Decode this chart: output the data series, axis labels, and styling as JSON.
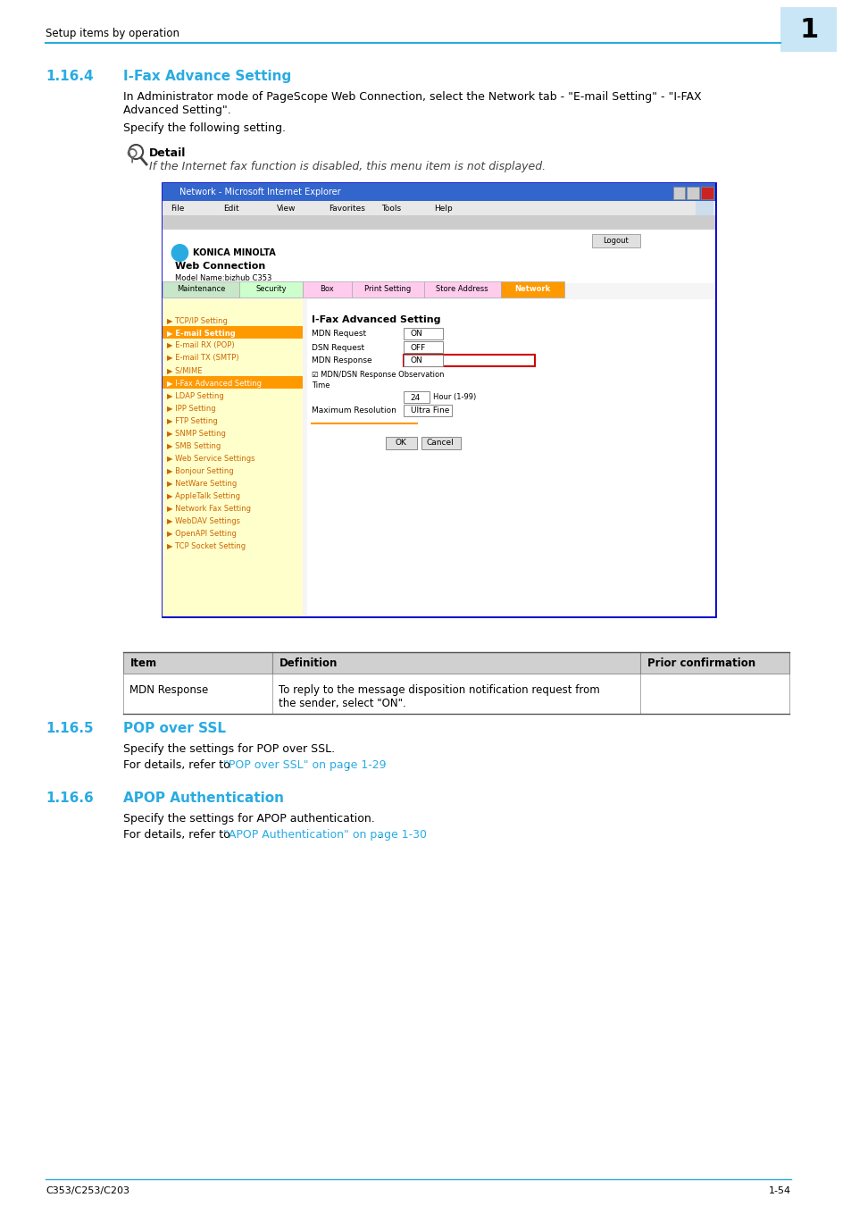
{
  "page_bg": "#ffffff",
  "header_text": "Setup items by operation",
  "header_text_color": "#000000",
  "header_line_color": "#29abe2",
  "chapter_number": "1",
  "chapter_bg": "#c8e6f5",
  "chapter_number_color": "#000000",
  "section_164_number": "1.16.4",
  "section_164_title": "I-Fax Advance Setting",
  "section_164_color": "#29abe2",
  "para1": "In Administrator mode of PageScope Web Connection, select the Network tab - \"E-mail Setting\" - \"I-FAX\nAdvanced Setting\".",
  "para2": "Specify the following setting.",
  "detail_label": "Detail",
  "detail_italic": "If the Internet fax function is disabled, this menu item is not displayed.",
  "section_165_number": "1.16.5",
  "section_165_title": "POP over SSL",
  "section_165_color": "#29abe2",
  "pop_para1": "Specify the settings for POP over SSL.",
  "pop_para2_prefix": "For details, refer to ",
  "pop_para2_link": "\"POP over SSL\" on page 1-29",
  "pop_para2_suffix": ".",
  "section_166_number": "1.16.6",
  "section_166_title": "APOP Authentication",
  "section_166_color": "#29abe2",
  "apop_para1": "Specify the settings for APOP authentication.",
  "apop_para2_prefix": "For details, refer to ",
  "apop_para2_link": "\"APOP Authentication\" on page 1-30",
  "apop_para2_suffix": ".",
  "table_header_bg": "#d0d0d0",
  "table_header_color": "#000000",
  "table_col1": "Item",
  "table_col2": "Definition",
  "table_col3": "Prior confirmation",
  "table_row1_col1": "MDN Response",
  "table_row1_col2": "To reply to the message disposition notification request from\nthe sender, select \"ON\".",
  "footer_left": "C353/C253/C203",
  "footer_right": "1-54",
  "footer_line_color": "#29abe2",
  "link_color": "#29abe2",
  "body_text_color": "#000000",
  "body_font_size": 9,
  "section_font_size": 11
}
